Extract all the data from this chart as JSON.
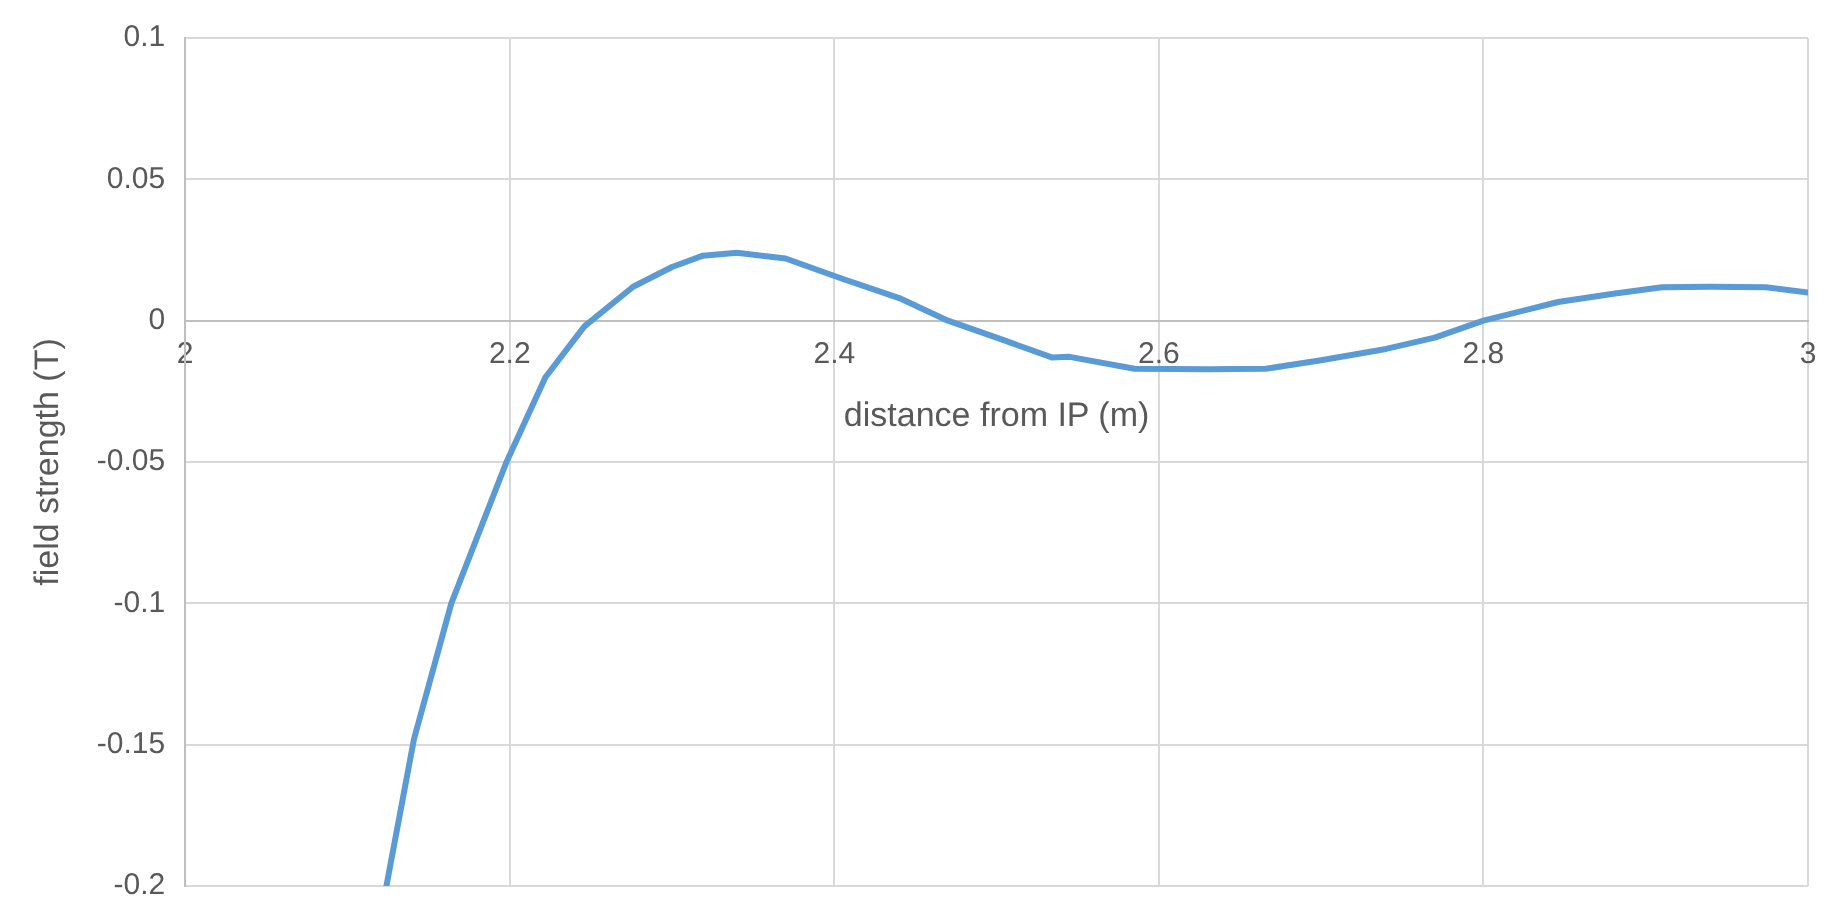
{
  "chart_data": {
    "type": "line",
    "xlabel": "distance from IP (m)",
    "ylabel": "field strength (T)",
    "series": [
      {
        "color": "#5b9bd5",
        "x": [
          2.124,
          2.141,
          2.164,
          2.198,
          2.222,
          2.246,
          2.276,
          2.3,
          2.319,
          2.34,
          2.37,
          2.404,
          2.44,
          2.47,
          2.5,
          2.534,
          2.545,
          2.585,
          2.63,
          2.666,
          2.7,
          2.74,
          2.77,
          2.8,
          2.846,
          2.88,
          2.91,
          2.94,
          2.974,
          3.0
        ],
        "values": [
          -0.2,
          -0.148,
          -0.1,
          -0.05,
          -0.02,
          -0.002,
          0.012,
          0.019,
          0.023,
          0.024,
          0.022,
          0.015,
          0.008,
          0.0,
          -0.006,
          -0.013,
          -0.0128,
          -0.017,
          -0.0172,
          -0.017,
          -0.014,
          -0.01,
          -0.006,
          0.0,
          0.0066,
          0.0095,
          0.0118,
          0.012,
          0.0118,
          0.01
        ]
      }
    ],
    "xlim": [
      2,
      3
    ],
    "xticks": [
      2,
      2.2,
      2.4,
      2.6,
      2.8,
      3
    ],
    "ylim": [
      -0.2,
      0.1
    ],
    "yticks": [
      -0.2,
      -0.15,
      -0.1,
      -0.05,
      0,
      0.05,
      0.1
    ],
    "grid": true,
    "legend": false,
    "marker": "none",
    "line_style": "solid"
  }
}
